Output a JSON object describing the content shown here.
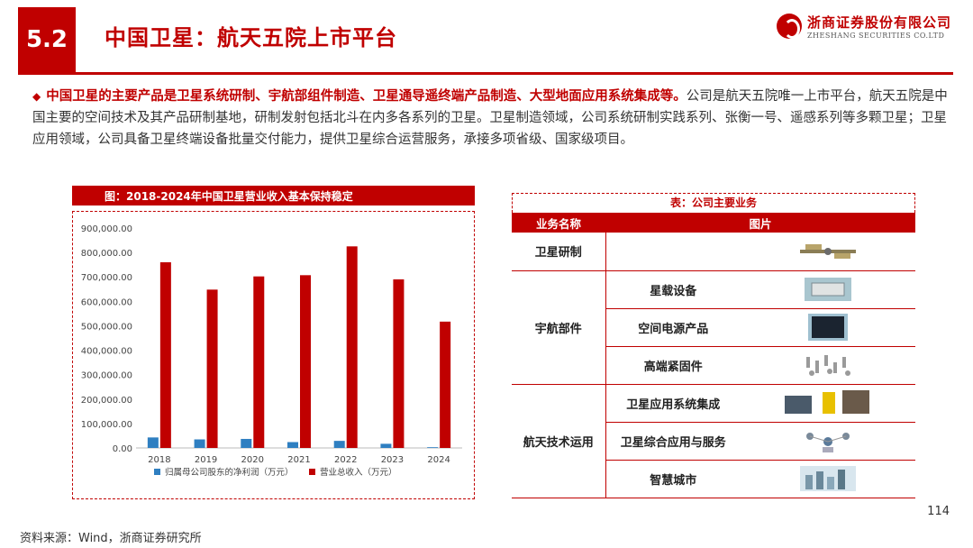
{
  "header": {
    "section_no": "5.2",
    "title": "中国卫星：航天五院上市平台",
    "logo_cn": "浙商证券股份有限公司",
    "logo_en": "ZHESHANG SECURITIES CO.LTD"
  },
  "intro": {
    "bold_text": "中国卫星的主要产品是卫星系统研制、宇航部组件制造、卫星通导遥终端产品制造、大型地面应用系统集成等。",
    "body_text": "公司是航天五院唯一上市平台，航天五院是中国主要的空间技术及其产品研制基地，研制发射包括北斗在内多各系列的卫星。卫星制造领域，公司系统研制实践系列、张衡一号、遥感系列等多颗卫星；卫星应用领域，公司具备卫星终端设备批量交付能力，提供卫星综合运营服务，承接多项省级、国家级项目。"
  },
  "chart": {
    "header": "图：2018-2024年中国卫星营业收入基本保持稳定"
  },
  "chart_data": {
    "type": "bar",
    "categories": [
      "2018",
      "2019",
      "2020",
      "2021",
      "2022",
      "2023",
      "2024"
    ],
    "series": [
      {
        "name": "归属母公司股东的净利润（万元）",
        "color": "#2f7fc1",
        "values": [
          43000,
          35000,
          37000,
          24000,
          29000,
          17000,
          3000
        ]
      },
      {
        "name": "营业总收入（万元）",
        "color": "#c00000",
        "values": [
          760000,
          648000,
          702000,
          707000,
          825000,
          690000,
          517000
        ]
      }
    ],
    "ylim": [
      0,
      900000
    ],
    "yticks": [
      "0.00",
      "100,000.00",
      "200,000.00",
      "300,000.00",
      "400,000.00",
      "500,000.00",
      "600,000.00",
      "700,000.00",
      "800,000.00",
      "900,000.00"
    ],
    "legend": "bottom",
    "grid": false
  },
  "table": {
    "header": "表：公司主要业务",
    "col1": "业务名称",
    "col2": "图片",
    "rows": [
      {
        "category": "卫星研制",
        "sub": ""
      },
      {
        "category": "宇航部件",
        "subs": [
          "星载设备",
          "空间电源产品",
          "高端紧固件"
        ]
      },
      {
        "category": "航天技术运用",
        "subs": [
          "卫星应用系统集成",
          "卫星综合应用与服务",
          "智慧城市"
        ]
      }
    ]
  },
  "footer": {
    "source": "资料来源：Wind，浙商证券研究所",
    "page": "114"
  }
}
